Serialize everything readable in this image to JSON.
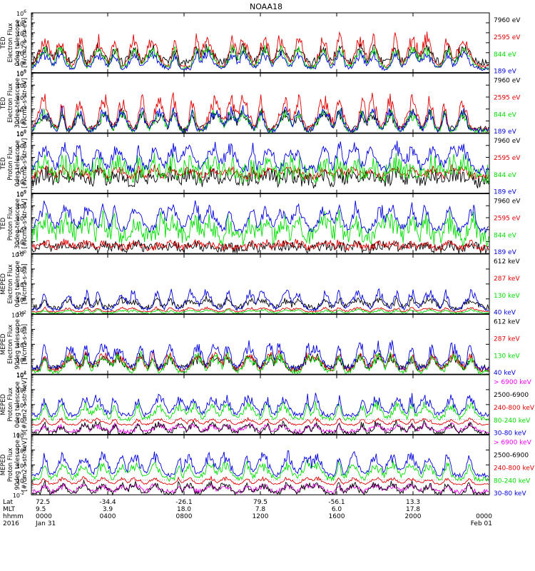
{
  "title": "NOAA18",
  "colors": {
    "black": "#000000",
    "red": "#e00000",
    "green": "#00dd00",
    "blue": "#0000dd",
    "magenta": "#ee00ee",
    "dotted": "#808080"
  },
  "chart_data": [
    {
      "type": "line",
      "title": "",
      "ylabel": [
        "TED",
        "Electron Flux",
        "0deg telescope",
        "[#/cm2-s-str-eV]"
      ],
      "yscale": "log",
      "ylim": [
        1,
        1000000
      ],
      "ytick_exponents": [
        0,
        1,
        2,
        3,
        4,
        5,
        6
      ],
      "legend": [
        {
          "label": "7960 eV",
          "color": "black"
        },
        {
          "label": "2595 eV",
          "color": "red"
        },
        {
          "label": "844 eV",
          "color": "green"
        },
        {
          "label": "189 eV",
          "color": "blue"
        }
      ],
      "series": [
        {
          "name": "7960 eV",
          "color": "black",
          "base": 1.0,
          "burst": 1.8,
          "noise": 0.4
        },
        {
          "name": "2595 eV",
          "color": "red",
          "base": 0.6,
          "burst": 3.4,
          "noise": 0.2
        },
        {
          "name": "844 eV",
          "color": "green",
          "base": 0.5,
          "burst": 2.2,
          "noise": 0.2
        },
        {
          "name": "189 eV",
          "color": "blue",
          "base": 0.4,
          "burst": 1.8,
          "noise": 0.2
        }
      ]
    },
    {
      "type": "line",
      "title": "",
      "ylabel": [
        "TED",
        "Electron Flux",
        "30deg telescope",
        "[#/cm2-s-str-eV]"
      ],
      "yscale": "log",
      "ylim": [
        1,
        100000
      ],
      "ytick_exponents": [
        0,
        1,
        2,
        3,
        4,
        5
      ],
      "legend": [
        {
          "label": "7960 eV",
          "color": "black"
        },
        {
          "label": "2595 eV",
          "color": "red"
        },
        {
          "label": "844 eV",
          "color": "green"
        },
        {
          "label": "189 eV",
          "color": "blue"
        }
      ],
      "series": [
        {
          "name": "7960 eV",
          "color": "black",
          "base": 0.3,
          "burst": 1.6,
          "noise": 0.3
        },
        {
          "name": "2595 eV",
          "color": "red",
          "base": 0.3,
          "burst": 3.0,
          "noise": 0.2
        },
        {
          "name": "844 eV",
          "color": "green",
          "base": 0.2,
          "burst": 1.8,
          "noise": 0.2
        },
        {
          "name": "189 eV",
          "color": "blue",
          "base": 0.2,
          "burst": 2.0,
          "noise": 0.2
        }
      ]
    },
    {
      "type": "line",
      "title": "",
      "ylabel": [
        "TED",
        "Proton Flux",
        "0deg telescope",
        "[#/cm2-s-str-eV]"
      ],
      "yscale": "log",
      "ylim": [
        1,
        100000
      ],
      "ytick_exponents": [
        0,
        1,
        2,
        3,
        4,
        5
      ],
      "legend": [
        {
          "label": "7960 eV",
          "color": "black"
        },
        {
          "label": "2595 eV",
          "color": "red"
        },
        {
          "label": "844 eV",
          "color": "green"
        },
        {
          "label": "189 eV",
          "color": "blue"
        }
      ],
      "series": [
        {
          "name": "7960 eV",
          "color": "black",
          "base": 1.0,
          "burst": 0.8,
          "noise": 0.6
        },
        {
          "name": "2595 eV",
          "color": "red",
          "base": 1.4,
          "burst": 0.8,
          "noise": 0.3
        },
        {
          "name": "844 eV",
          "color": "green",
          "base": 1.6,
          "burst": 1.0,
          "noise": 0.9
        },
        {
          "name": "189 eV",
          "color": "blue",
          "base": 2.0,
          "burst": 2.2,
          "noise": 0.4
        }
      ]
    },
    {
      "type": "line",
      "title": "",
      "ylabel": [
        "TED",
        "Proton Flux",
        "30deg telescope",
        "[#/cm2-s-str-eV]"
      ],
      "yscale": "log",
      "ylim": [
        1,
        100000
      ],
      "ytick_exponents": [
        0,
        1,
        2,
        3,
        4,
        5
      ],
      "legend": [
        {
          "label": "7960 eV",
          "color": "black"
        },
        {
          "label": "2595 eV",
          "color": "red"
        },
        {
          "label": "844 eV",
          "color": "green"
        },
        {
          "label": "189 eV",
          "color": "blue"
        }
      ],
      "series": [
        {
          "name": "7960 eV",
          "color": "black",
          "base": 0.4,
          "burst": 0.4,
          "noise": 0.4
        },
        {
          "name": "2595 eV",
          "color": "red",
          "base": 0.5,
          "burst": 0.5,
          "noise": 0.3
        },
        {
          "name": "844 eV",
          "color": "green",
          "base": 1.4,
          "burst": 1.6,
          "noise": 0.8
        },
        {
          "name": "189 eV",
          "color": "blue",
          "base": 2.0,
          "burst": 2.2,
          "noise": 0.3
        }
      ]
    },
    {
      "type": "line",
      "title": "",
      "ylabel": [
        "MEPED",
        "Electron Flux",
        "0deg telescope",
        "[#/cm2-s-str]"
      ],
      "yscale": "log",
      "ylim": [
        100,
        10000000000
      ],
      "ytick_exponents": [
        2,
        4,
        6,
        8,
        10
      ],
      "legend": [
        {
          "label": "612 keV",
          "color": "black"
        },
        {
          "label": "287 keV",
          "color": "red"
        },
        {
          "label": "130 keV",
          "color": "green"
        },
        {
          "label": "40 keV",
          "color": "blue"
        }
      ],
      "series": [
        {
          "name": "612 keV",
          "color": "black",
          "base": 2.9,
          "burst": 1.2,
          "noise": 0.4
        },
        {
          "name": "287 keV",
          "color": "red",
          "base": 2.3,
          "burst": 0.6,
          "noise": 0.1
        },
        {
          "name": "130 keV",
          "color": "green",
          "base": 2.1,
          "burst": 0.5,
          "noise": 0.1
        },
        {
          "name": "40 keV",
          "color": "blue",
          "base": 2.6,
          "burst": 2.8,
          "noise": 0.2
        }
      ]
    },
    {
      "type": "line",
      "title": "",
      "ylabel": [
        "MEPED",
        "Electron Flux",
        "90deg telescope",
        "[#/cm2-s-str]"
      ],
      "yscale": "log",
      "ylim": [
        100,
        10000000000
      ],
      "ytick_exponents": [
        2,
        4,
        6,
        8,
        10
      ],
      "legend": [
        {
          "label": "612 keV",
          "color": "black"
        },
        {
          "label": "287 keV",
          "color": "red"
        },
        {
          "label": "130 keV",
          "color": "green"
        },
        {
          "label": "40 keV",
          "color": "blue"
        }
      ],
      "series": [
        {
          "name": "612 keV",
          "color": "black",
          "base": 2.8,
          "burst": 1.8,
          "noise": 0.5
        },
        {
          "name": "287 keV",
          "color": "red",
          "base": 2.6,
          "burst": 2.4,
          "noise": 0.3
        },
        {
          "name": "130 keV",
          "color": "green",
          "base": 2.3,
          "burst": 2.6,
          "noise": 0.3
        },
        {
          "name": "40 keV",
          "color": "blue",
          "base": 2.8,
          "burst": 3.6,
          "noise": 0.3
        }
      ]
    },
    {
      "type": "line",
      "title": "",
      "ylabel": [
        "MEPED",
        "Proton Flux",
        "0deg telescope",
        "[#/cm2-s-str-keV]"
      ],
      "yscale": "log",
      "ylim": [
        0.01,
        1000000
      ],
      "ytick_exponents": [
        -2,
        0,
        2,
        4,
        6
      ],
      "legend": [
        {
          "label": "> 6900 keV",
          "color": "magenta"
        },
        {
          "label": "2500-6900",
          "color": "black"
        },
        {
          "label": "240-800 keV",
          "color": "red"
        },
        {
          "label": "80-240 keV",
          "color": "green"
        },
        {
          "label": "30-80 keV",
          "color": "blue"
        }
      ],
      "series": [
        {
          "name": "> 6900 keV",
          "color": "magenta",
          "base": -1.6,
          "burst": 1.0,
          "noise": 0.3
        },
        {
          "name": "2500-6900",
          "color": "black",
          "base": -1.9,
          "burst": 1.6,
          "noise": 0.3
        },
        {
          "name": "240-800 keV",
          "color": "red",
          "base": -0.7,
          "burst": 0.9,
          "noise": 0.1
        },
        {
          "name": "80-240 keV",
          "color": "green",
          "base": 0.1,
          "burst": 2.2,
          "noise": 0.3
        },
        {
          "name": "30-80 keV",
          "color": "blue",
          "base": 0.6,
          "burst": 2.8,
          "noise": 0.3
        }
      ]
    },
    {
      "type": "line",
      "title": "",
      "ylabel": [
        "MEPED",
        "Proton Flux",
        "90deg telescope",
        "[#/cm2-s-str-keV]"
      ],
      "yscale": "log",
      "ylim": [
        0.01,
        1000000
      ],
      "ytick_exponents": [
        -2,
        0,
        2,
        4,
        6
      ],
      "legend": [
        {
          "label": "> 6900 keV",
          "color": "magenta"
        },
        {
          "label": "2500-6900",
          "color": "black"
        },
        {
          "label": "240-800 keV",
          "color": "red"
        },
        {
          "label": "80-240 keV",
          "color": "green"
        },
        {
          "label": "30-80 keV",
          "color": "blue"
        }
      ],
      "series": [
        {
          "name": "> 6900 keV",
          "color": "magenta",
          "base": -1.6,
          "burst": 1.0,
          "noise": 0.3
        },
        {
          "name": "2500-6900",
          "color": "black",
          "base": -1.9,
          "burst": 1.6,
          "noise": 0.3
        },
        {
          "name": "240-800 keV",
          "color": "red",
          "base": -0.6,
          "burst": 1.0,
          "noise": 0.1
        },
        {
          "name": "80-240 keV",
          "color": "green",
          "base": 0.1,
          "burst": 2.4,
          "noise": 0.3
        },
        {
          "name": "30-80 keV",
          "color": "blue",
          "base": 0.6,
          "burst": 3.2,
          "noise": 0.3
        }
      ]
    }
  ],
  "x_axis": {
    "row_labels": [
      "Lat",
      "MLT",
      "hhmm",
      "2016"
    ],
    "ticks": [
      {
        "lat": "72.5",
        "mlt": "9.5",
        "hhmm": "0000",
        "date": "Jan 31"
      },
      {
        "lat": "-34.4",
        "mlt": "3.9",
        "hhmm": "0400",
        "date": ""
      },
      {
        "lat": "-26.1",
        "mlt": "18.0",
        "hhmm": "0800",
        "date": ""
      },
      {
        "lat": "79.5",
        "mlt": "7.8",
        "hhmm": "1200",
        "date": ""
      },
      {
        "lat": "-56.1",
        "mlt": "6.0",
        "hhmm": "1600",
        "date": ""
      },
      {
        "lat": "13.3",
        "mlt": "17.8",
        "hhmm": "2000",
        "date": ""
      },
      {
        "lat": "",
        "mlt": "",
        "hhmm": "0000",
        "date": "Feb 01"
      }
    ]
  }
}
